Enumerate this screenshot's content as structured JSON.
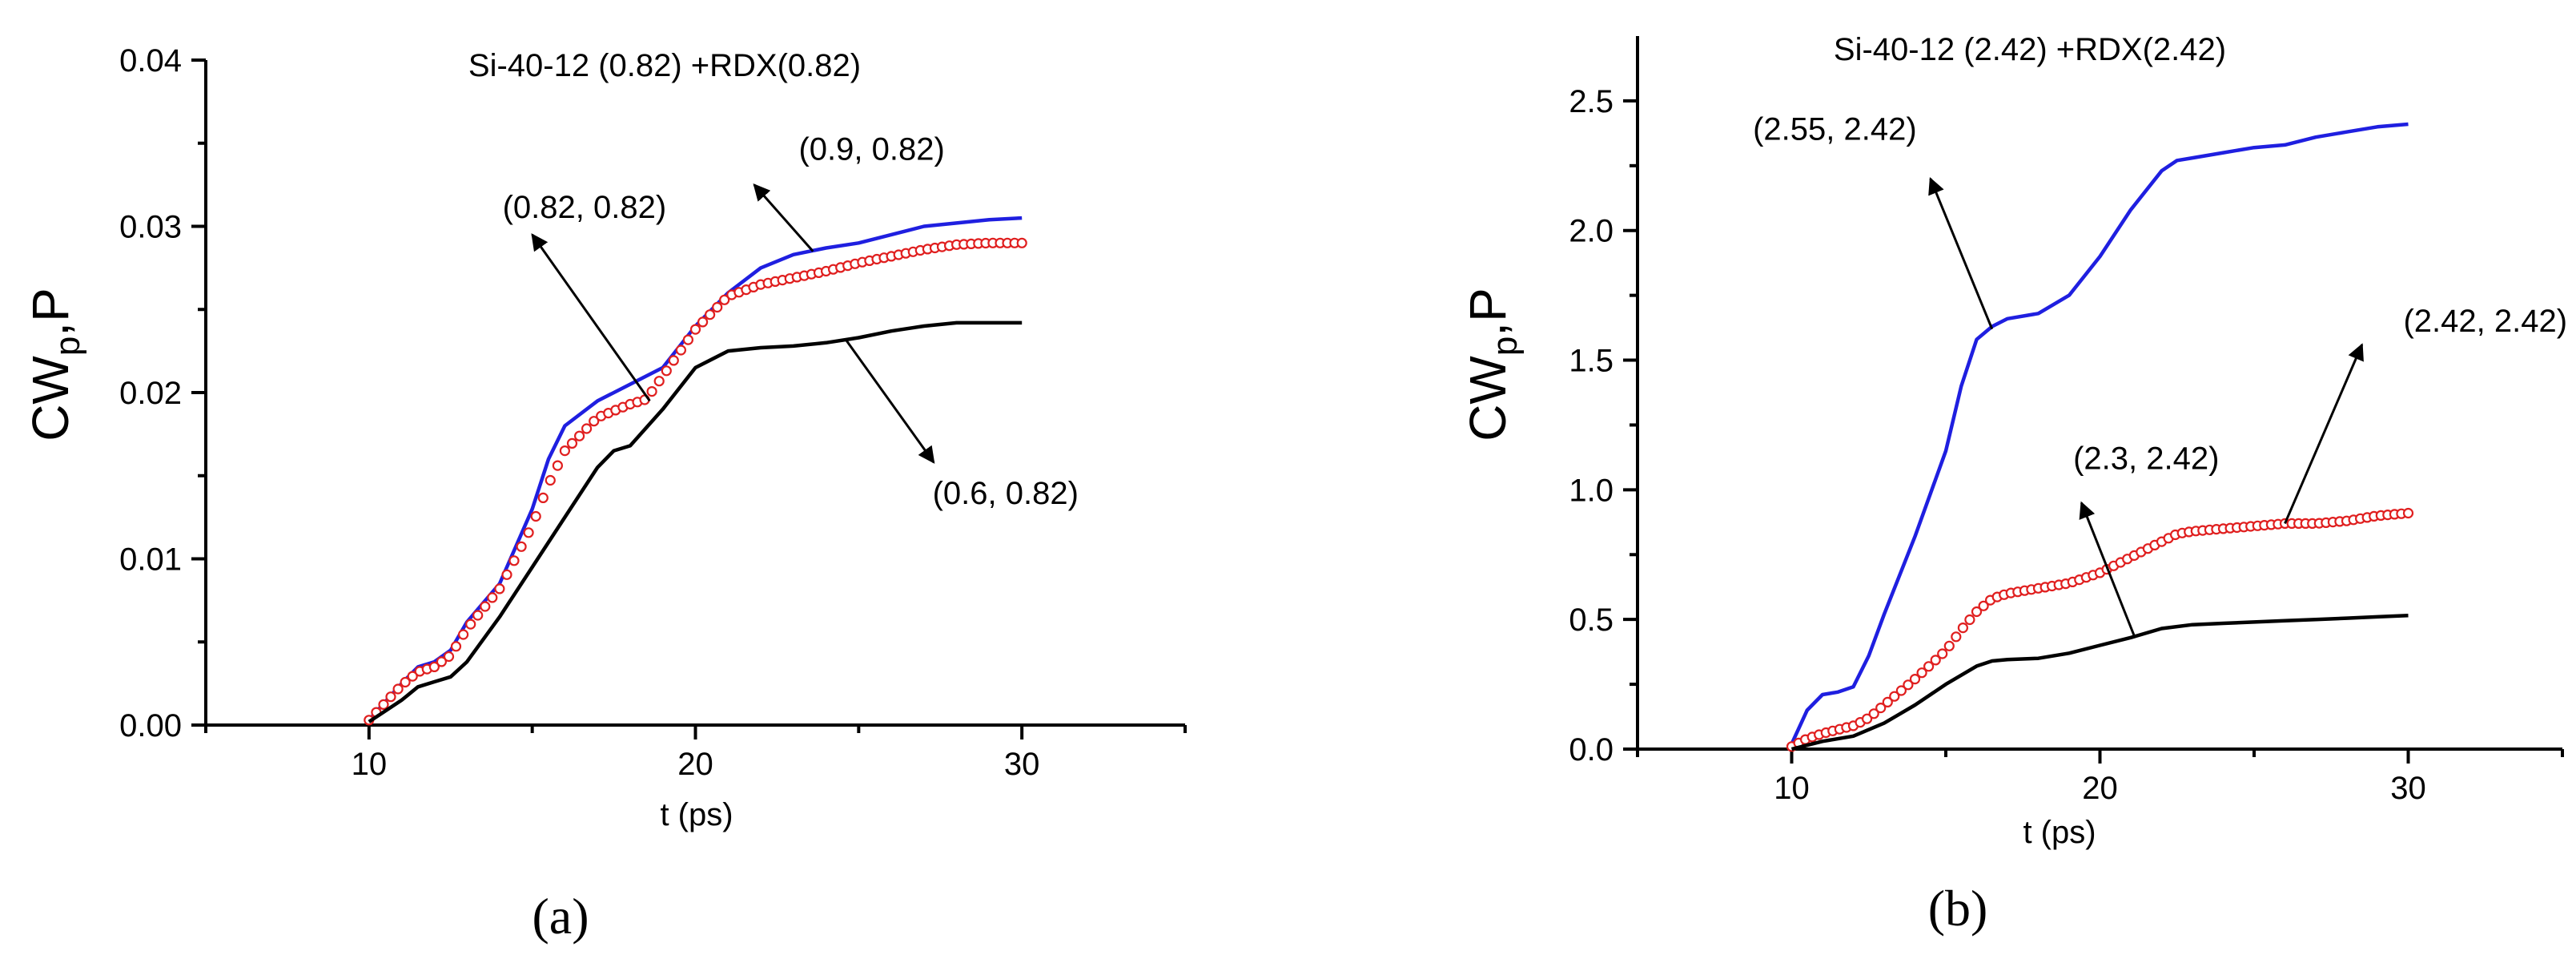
{
  "colors": {
    "blue": "#1f1fe0",
    "red": "#e01f1f",
    "black": "#000000"
  },
  "chart_data": [
    {
      "panel": "(a)",
      "type": "line",
      "title": "Si-40-12 (0.82) +RDX(0.82)",
      "xlabel": "t (ps)",
      "ylabel_main": "CW",
      "ylabel_sub": "p",
      "ylabel_tail": ",P",
      "xlim": [
        5,
        35
      ],
      "ylim": [
        0,
        0.04
      ],
      "xticks": [
        10,
        20,
        30
      ],
      "xtick_labels": [
        "10",
        "20",
        "30"
      ],
      "yticks": [
        0,
        0.01,
        0.02,
        0.03,
        0.04
      ],
      "ytick_labels": [
        "0.00",
        "0.01",
        "0.02",
        "0.03",
        "0.04"
      ],
      "series": [
        {
          "color": "#1f1fe0",
          "style": "line",
          "x": [
            10,
            11,
            11.5,
            12,
            12.5,
            13,
            14,
            15,
            15.5,
            16,
            17,
            18,
            19,
            20,
            21,
            22,
            23,
            24,
            25,
            26,
            27,
            28,
            29,
            30
          ],
          "y": [
            0.0003,
            0.0025,
            0.0035,
            0.0038,
            0.0045,
            0.0062,
            0.0085,
            0.013,
            0.016,
            0.018,
            0.0195,
            0.0205,
            0.0215,
            0.024,
            0.026,
            0.0275,
            0.0283,
            0.0287,
            0.029,
            0.0295,
            0.03,
            0.0302,
            0.0304,
            0.0305
          ]
        },
        {
          "color": "#e01f1f",
          "style": "markers",
          "x": [
            10,
            11,
            11.5,
            12,
            12.5,
            13,
            14,
            15,
            15.5,
            16,
            17,
            18,
            18.5,
            19,
            20,
            21,
            22,
            23,
            24,
            25,
            26,
            27,
            28,
            29,
            30
          ],
          "y": [
            0.0003,
            0.0024,
            0.0032,
            0.0035,
            0.0042,
            0.0058,
            0.0082,
            0.012,
            0.0145,
            0.0165,
            0.0185,
            0.0193,
            0.0196,
            0.021,
            0.0238,
            0.0258,
            0.0265,
            0.0269,
            0.0273,
            0.0278,
            0.0282,
            0.0286,
            0.0289,
            0.029,
            0.029
          ]
        },
        {
          "color": "#000000",
          "style": "line",
          "x": [
            10,
            11,
            11.5,
            12,
            12.5,
            13,
            14,
            15,
            16,
            17,
            17.5,
            18,
            19,
            20,
            21,
            22,
            23,
            24,
            25,
            26,
            27,
            28,
            29,
            30
          ],
          "y": [
            0.0002,
            0.0015,
            0.0023,
            0.0026,
            0.0029,
            0.0038,
            0.0065,
            0.0095,
            0.0125,
            0.0155,
            0.0165,
            0.0168,
            0.019,
            0.0215,
            0.0225,
            0.0227,
            0.0228,
            0.023,
            0.0233,
            0.0237,
            0.024,
            0.0242,
            0.0242,
            0.0242
          ]
        }
      ],
      "annotations": [
        {
          "text": "(0.82, 0.82)",
          "x": 16.6,
          "y": 0.0305,
          "arrow_from": [
            18.6,
            0.0195
          ],
          "arrow_to": [
            15.0,
            0.0295
          ]
        },
        {
          "text": "(0.9, 0.82)",
          "x": 25.4,
          "y": 0.034,
          "arrow_from": [
            23.6,
            0.0285
          ],
          "arrow_to": [
            21.8,
            0.0325
          ]
        },
        {
          "text": "(0.6, 0.82)",
          "x": 29.5,
          "y": 0.0133,
          "arrow_from": [
            24.6,
            0.0232
          ],
          "arrow_to": [
            27.3,
            0.0158
          ]
        }
      ]
    },
    {
      "panel": "(b)",
      "type": "line",
      "title": "Si-40-12 (2.42) +RDX(2.42)",
      "xlabel": "t (ps)",
      "ylabel_main": "CW",
      "ylabel_sub": "p",
      "ylabel_tail": ",P",
      "xlim": [
        5,
        35
      ],
      "ylim": [
        0,
        2.75
      ],
      "xticks": [
        10,
        20,
        30
      ],
      "xtick_labels": [
        "10",
        "20",
        "30"
      ],
      "yticks": [
        0,
        0.5,
        1.0,
        1.5,
        2.0,
        2.5
      ],
      "ytick_labels": [
        "0.0",
        "0.5",
        "1.0",
        "1.5",
        "2.0",
        "2.5"
      ],
      "series": [
        {
          "color": "#1f1fe0",
          "style": "line",
          "x": [
            10,
            10.5,
            11,
            11.5,
            12,
            12.5,
            13,
            14,
            15,
            15.5,
            16,
            16.5,
            17,
            18,
            19,
            20,
            21,
            22,
            22.5,
            23,
            24,
            25,
            26,
            27,
            28,
            29,
            30
          ],
          "y": [
            0.02,
            0.15,
            0.21,
            0.22,
            0.24,
            0.36,
            0.52,
            0.82,
            1.15,
            1.4,
            1.58,
            1.63,
            1.66,
            1.68,
            1.75,
            1.9,
            2.08,
            2.23,
            2.27,
            2.28,
            2.3,
            2.32,
            2.33,
            2.36,
            2.38,
            2.4,
            2.41
          ]
        },
        {
          "color": "#e01f1f",
          "style": "markers",
          "x": [
            10,
            10.5,
            11,
            11.5,
            12,
            12.5,
            13,
            14,
            15,
            15.5,
            16,
            16.5,
            17,
            18,
            19,
            20,
            21,
            22,
            22.5,
            23,
            24,
            25,
            26,
            27,
            28,
            29,
            30
          ],
          "y": [
            0.01,
            0.04,
            0.06,
            0.075,
            0.09,
            0.12,
            0.17,
            0.27,
            0.38,
            0.46,
            0.53,
            0.58,
            0.6,
            0.62,
            0.64,
            0.68,
            0.74,
            0.8,
            0.83,
            0.84,
            0.85,
            0.86,
            0.87,
            0.87,
            0.88,
            0.9,
            0.91
          ]
        },
        {
          "color": "#000000",
          "style": "line",
          "x": [
            10,
            11,
            12,
            13,
            14,
            15,
            16,
            16.5,
            17,
            18,
            19,
            20,
            21,
            22,
            23,
            24,
            25,
            26,
            27,
            28,
            29,
            30
          ],
          "y": [
            0.0,
            0.03,
            0.05,
            0.1,
            0.17,
            0.25,
            0.32,
            0.34,
            0.345,
            0.35,
            0.37,
            0.4,
            0.43,
            0.465,
            0.48,
            0.485,
            0.49,
            0.495,
            0.5,
            0.505,
            0.51,
            0.515
          ]
        }
      ],
      "annotations": [
        {
          "text": "(2.55, 2.42)",
          "x": 11.4,
          "y": 2.35,
          "arrow_from": [
            16.5,
            1.62
          ],
          "arrow_to": [
            14.5,
            2.2
          ]
        },
        {
          "text": "(2.42, 2.42)",
          "x": 32.5,
          "y": 1.61,
          "arrow_from": [
            26.0,
            0.87
          ],
          "arrow_to": [
            28.5,
            1.56
          ]
        },
        {
          "text": "(2.3, 2.42)",
          "x": 21.5,
          "y": 1.08,
          "arrow_from": [
            21.1,
            0.44
          ],
          "arrow_to": [
            19.4,
            0.95
          ]
        }
      ]
    }
  ]
}
